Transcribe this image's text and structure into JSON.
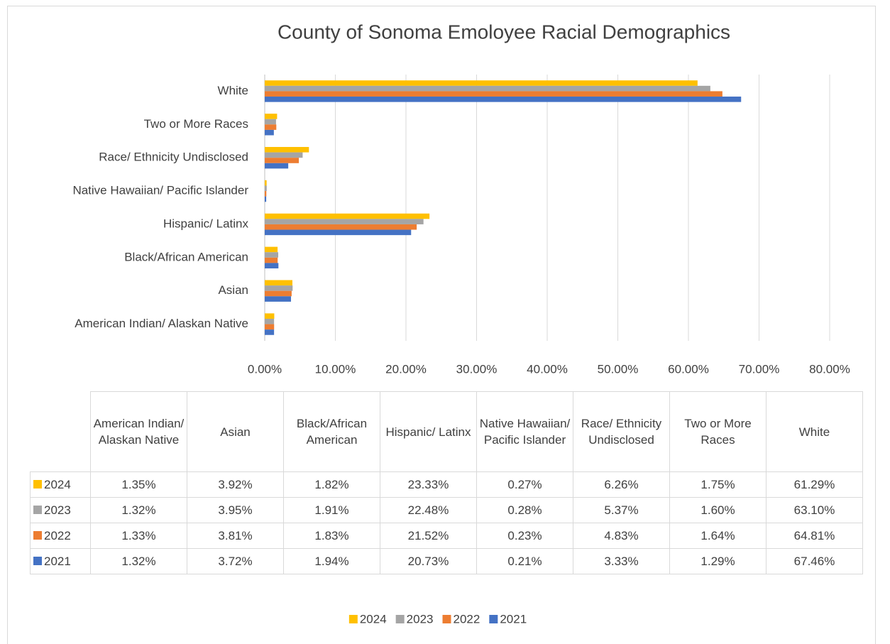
{
  "chart_data": {
    "type": "bar",
    "orientation": "horizontal",
    "title": "County of Sonoma Emoloyee Racial Demographics",
    "categories": [
      "American Indian/ Alaskan Native",
      "Asian",
      "Black/African American",
      "Hispanic/ Latinx",
      "Native Hawaiian/ Pacific Islander",
      "Race/ Ethnicity Undisclosed",
      "Two or More Races",
      "White"
    ],
    "series": [
      {
        "name": "2024",
        "color": "#ffc000",
        "values": [
          1.35,
          3.92,
          1.82,
          23.33,
          0.27,
          6.26,
          1.75,
          61.29
        ],
        "value_labels": [
          "1.35%",
          "3.92%",
          "1.82%",
          "23.33%",
          "0.27%",
          "6.26%",
          "1.75%",
          "61.29%"
        ]
      },
      {
        "name": "2023",
        "color": "#a5a5a5",
        "values": [
          1.32,
          3.95,
          1.91,
          22.48,
          0.28,
          5.37,
          1.6,
          63.1
        ],
        "value_labels": [
          "1.32%",
          "3.95%",
          "1.91%",
          "22.48%",
          "0.28%",
          "5.37%",
          "1.60%",
          "63.10%"
        ]
      },
      {
        "name": "2022",
        "color": "#ed7d31",
        "values": [
          1.33,
          3.81,
          1.83,
          21.52,
          0.23,
          4.83,
          1.64,
          64.81
        ],
        "value_labels": [
          "1.33%",
          "3.81%",
          "1.83%",
          "21.52%",
          "0.23%",
          "4.83%",
          "1.64%",
          "64.81%"
        ]
      },
      {
        "name": "2021",
        "color": "#4472c4",
        "values": [
          1.32,
          3.72,
          1.94,
          20.73,
          0.21,
          3.33,
          1.29,
          67.46
        ],
        "value_labels": [
          "1.32%",
          "3.72%",
          "1.94%",
          "20.73%",
          "0.21%",
          "3.33%",
          "1.29%",
          "67.46%"
        ]
      }
    ],
    "xlim": [
      0,
      80
    ],
    "xticks": [
      {
        "value": 0,
        "label": "0.00%"
      },
      {
        "value": 10,
        "label": "10.00%"
      },
      {
        "value": 20,
        "label": "20.00%"
      },
      {
        "value": 30,
        "label": "30.00%"
      },
      {
        "value": 40,
        "label": "40.00%"
      },
      {
        "value": 50,
        "label": "50.00%"
      },
      {
        "value": 60,
        "label": "60.00%"
      },
      {
        "value": 70,
        "label": "70.00%"
      },
      {
        "value": 80,
        "label": "80.00%"
      }
    ],
    "grid": true,
    "legend": "bottom",
    "data_table": true
  }
}
